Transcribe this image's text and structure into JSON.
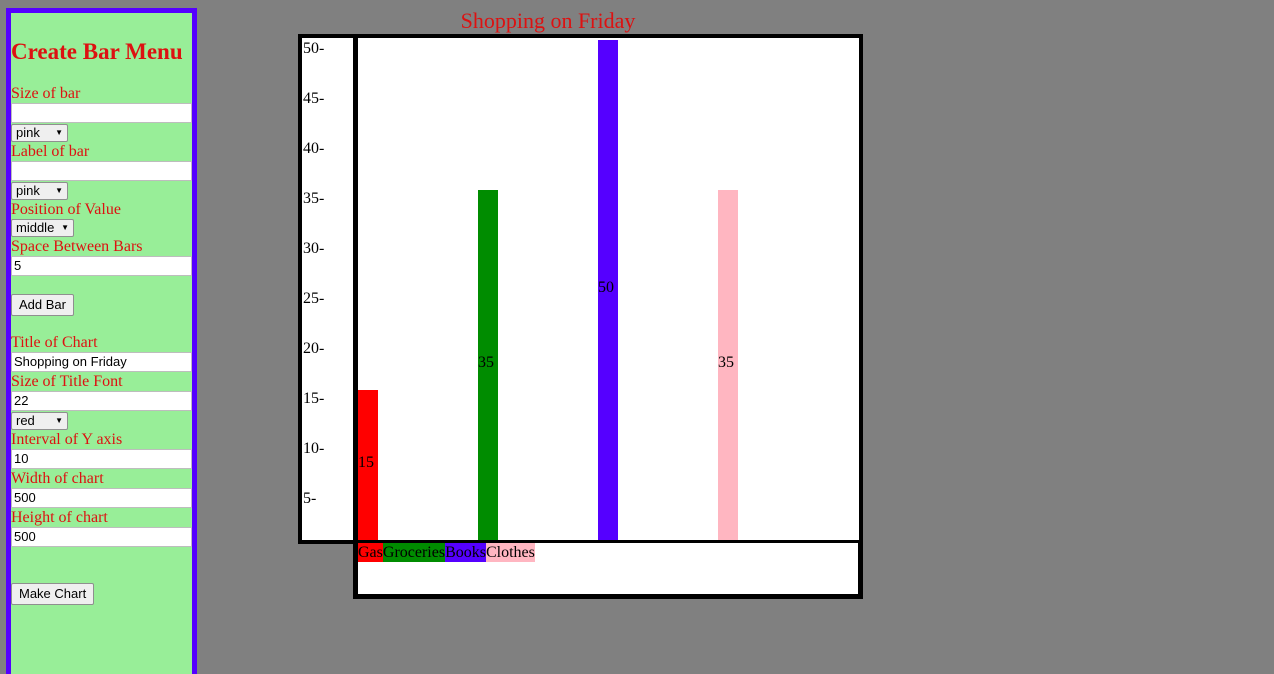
{
  "menu": {
    "title": "Create Bar Menu",
    "size_label": "Size of bar",
    "size_value": "",
    "bar_color": "pink",
    "label_label": "Label of bar",
    "label_value": "",
    "label_color": "pink",
    "position_label": "Position of Value",
    "position_value": "middle",
    "space_label": "Space Between Bars",
    "space_value": "5",
    "add_button": "Add Bar",
    "chart_title_label": "Title of Chart",
    "chart_title_value": "Shopping on Friday",
    "title_font_label": "Size of Title Font",
    "title_font_value": "22",
    "title_color": "red",
    "interval_label": "Interval of Y axis",
    "interval_value": "10",
    "width_label": "Width of chart",
    "width_value": "500",
    "height_label": "Height of chart",
    "height_value": "500",
    "make_button": "Make Chart",
    "dropdown_arrow": "▼"
  },
  "chart_data": {
    "type": "bar",
    "title": "Shopping on Friday",
    "title_color": "#dd1111",
    "categories": [
      "Gas",
      "Groceries",
      "Books",
      "Clothes"
    ],
    "values": [
      15,
      35,
      50,
      35
    ],
    "value_labels": [
      "15",
      "35",
      "50",
      "35"
    ],
    "colors": [
      "#ff0000",
      "#008c00",
      "#5500ff",
      "#ffb6c1"
    ],
    "ylim": [
      0,
      50
    ],
    "yticks": [
      "50-",
      "45-",
      "40-",
      "35-",
      "30-",
      "25-",
      "20-",
      "15-",
      "10-",
      "5-"
    ],
    "value_position": "middle",
    "legend_placement": "bottom"
  }
}
